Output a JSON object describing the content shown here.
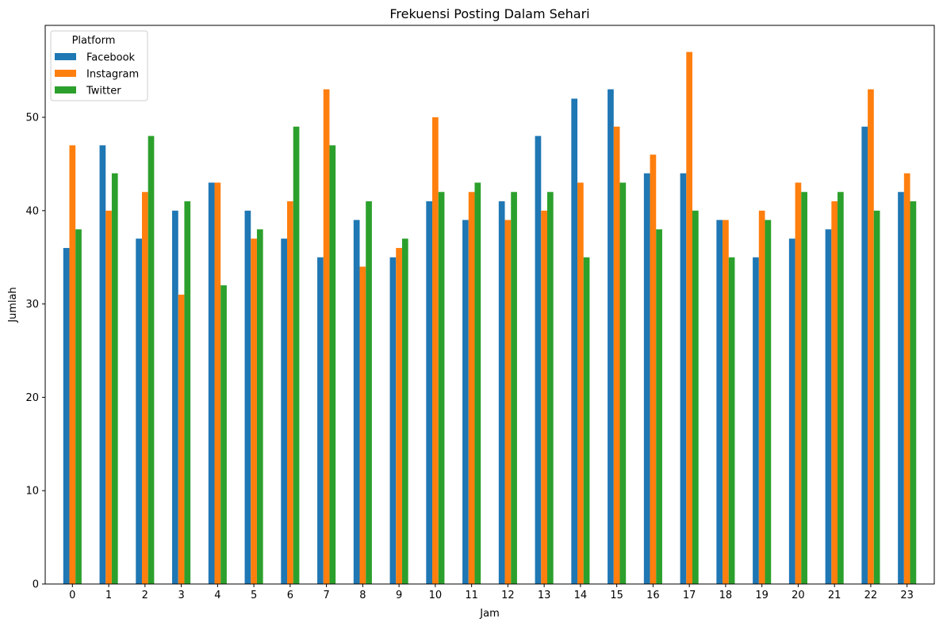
{
  "chart_data": {
    "type": "bar",
    "title": "Frekuensi Posting Dalam Sehari",
    "xlabel": "Jam",
    "ylabel": "Jumlah",
    "ylim": [
      0,
      59.85
    ],
    "yticks": [
      0,
      10,
      20,
      30,
      40,
      50
    ],
    "grid": false,
    "legend": {
      "title": "Platform",
      "placement": "top-left"
    },
    "categories": [
      "0",
      "1",
      "2",
      "3",
      "4",
      "5",
      "6",
      "7",
      "8",
      "9",
      "10",
      "11",
      "12",
      "13",
      "14",
      "15",
      "16",
      "17",
      "18",
      "19",
      "20",
      "21",
      "22",
      "23"
    ],
    "series": [
      {
        "name": "Facebook",
        "color": "#1f77b4",
        "values": [
          36,
          47,
          37,
          40,
          43,
          40,
          37,
          35,
          39,
          35,
          41,
          39,
          41,
          48,
          52,
          53,
          44,
          44,
          39,
          35,
          37,
          38,
          49,
          42
        ]
      },
      {
        "name": "Instagram",
        "color": "#ff7f0e",
        "values": [
          47,
          40,
          42,
          31,
          43,
          37,
          41,
          53,
          34,
          36,
          50,
          42,
          39,
          40,
          43,
          49,
          46,
          57,
          39,
          40,
          43,
          41,
          53,
          44
        ]
      },
      {
        "name": "Twitter",
        "color": "#2ca02c",
        "values": [
          38,
          44,
          48,
          41,
          32,
          38,
          49,
          47,
          41,
          37,
          42,
          43,
          42,
          42,
          35,
          43,
          38,
          40,
          35,
          39,
          42,
          42,
          40,
          41
        ]
      }
    ]
  }
}
